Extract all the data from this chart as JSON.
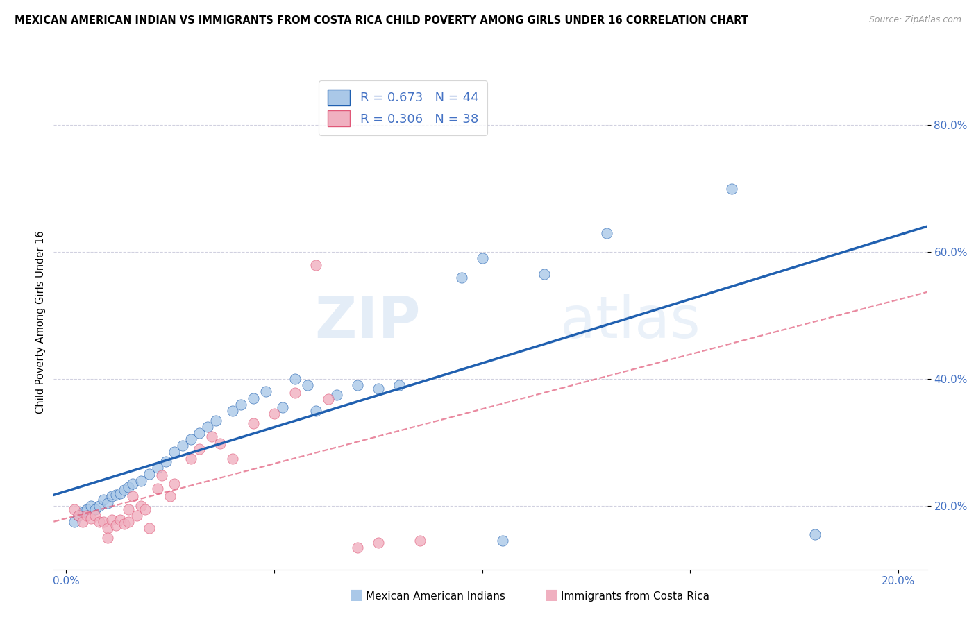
{
  "title": "MEXICAN AMERICAN INDIAN VS IMMIGRANTS FROM COSTA RICA CHILD POVERTY AMONG GIRLS UNDER 16 CORRELATION CHART",
  "source": "Source: ZipAtlas.com",
  "ylabel": "Child Poverty Among Girls Under 16",
  "R_blue": 0.673,
  "N_blue": 44,
  "R_pink": 0.306,
  "N_pink": 38,
  "blue_scatter_color": "#aac8e8",
  "pink_scatter_color": "#f0b0c0",
  "blue_line_color": "#2060b0",
  "pink_line_color": "#e05878",
  "blue_scatter": [
    [
      0.002,
      0.175
    ],
    [
      0.003,
      0.185
    ],
    [
      0.004,
      0.19
    ],
    [
      0.005,
      0.195
    ],
    [
      0.006,
      0.2
    ],
    [
      0.007,
      0.195
    ],
    [
      0.008,
      0.2
    ],
    [
      0.009,
      0.21
    ],
    [
      0.01,
      0.205
    ],
    [
      0.011,
      0.215
    ],
    [
      0.012,
      0.218
    ],
    [
      0.013,
      0.22
    ],
    [
      0.014,
      0.225
    ],
    [
      0.015,
      0.23
    ],
    [
      0.016,
      0.235
    ],
    [
      0.018,
      0.24
    ],
    [
      0.02,
      0.25
    ],
    [
      0.022,
      0.26
    ],
    [
      0.024,
      0.27
    ],
    [
      0.026,
      0.285
    ],
    [
      0.028,
      0.295
    ],
    [
      0.03,
      0.305
    ],
    [
      0.032,
      0.315
    ],
    [
      0.034,
      0.325
    ],
    [
      0.036,
      0.335
    ],
    [
      0.04,
      0.35
    ],
    [
      0.042,
      0.36
    ],
    [
      0.045,
      0.37
    ],
    [
      0.048,
      0.38
    ],
    [
      0.052,
      0.355
    ],
    [
      0.055,
      0.4
    ],
    [
      0.058,
      0.39
    ],
    [
      0.06,
      0.35
    ],
    [
      0.065,
      0.375
    ],
    [
      0.07,
      0.39
    ],
    [
      0.075,
      0.385
    ],
    [
      0.08,
      0.39
    ],
    [
      0.095,
      0.56
    ],
    [
      0.1,
      0.59
    ],
    [
      0.105,
      0.145
    ],
    [
      0.115,
      0.565
    ],
    [
      0.13,
      0.63
    ],
    [
      0.16,
      0.7
    ],
    [
      0.18,
      0.155
    ]
  ],
  "pink_scatter": [
    [
      0.002,
      0.195
    ],
    [
      0.003,
      0.185
    ],
    [
      0.004,
      0.175
    ],
    [
      0.005,
      0.185
    ],
    [
      0.006,
      0.18
    ],
    [
      0.007,
      0.185
    ],
    [
      0.008,
      0.175
    ],
    [
      0.009,
      0.175
    ],
    [
      0.01,
      0.165
    ],
    [
      0.01,
      0.15
    ],
    [
      0.011,
      0.178
    ],
    [
      0.012,
      0.17
    ],
    [
      0.013,
      0.178
    ],
    [
      0.014,
      0.172
    ],
    [
      0.015,
      0.195
    ],
    [
      0.015,
      0.175
    ],
    [
      0.016,
      0.215
    ],
    [
      0.017,
      0.185
    ],
    [
      0.018,
      0.2
    ],
    [
      0.019,
      0.195
    ],
    [
      0.02,
      0.165
    ],
    [
      0.022,
      0.228
    ],
    [
      0.023,
      0.248
    ],
    [
      0.025,
      0.215
    ],
    [
      0.026,
      0.235
    ],
    [
      0.03,
      0.275
    ],
    [
      0.032,
      0.29
    ],
    [
      0.035,
      0.31
    ],
    [
      0.037,
      0.298
    ],
    [
      0.04,
      0.275
    ],
    [
      0.045,
      0.33
    ],
    [
      0.05,
      0.345
    ],
    [
      0.055,
      0.378
    ],
    [
      0.06,
      0.58
    ],
    [
      0.063,
      0.368
    ],
    [
      0.07,
      0.135
    ],
    [
      0.075,
      0.142
    ],
    [
      0.085,
      0.145
    ]
  ],
  "watermark_zip": "ZIP",
  "watermark_atlas": "atlas",
  "background_color": "#ffffff",
  "grid_color": "#ccccdd",
  "title_fontsize": 10.5,
  "axis_label_color": "#4472c4",
  "tick_label_color": "#4472c4",
  "xlim": [
    -0.003,
    0.207
  ],
  "ylim": [
    0.1,
    0.88
  ],
  "yticks": [
    0.2,
    0.4,
    0.6,
    0.8
  ],
  "xticks": [
    0.0,
    0.2
  ],
  "xtick_minor": [
    0.05,
    0.1,
    0.15
  ],
  "legend_labels": [
    "Mexican American Indians",
    "Immigrants from Costa Rica"
  ]
}
